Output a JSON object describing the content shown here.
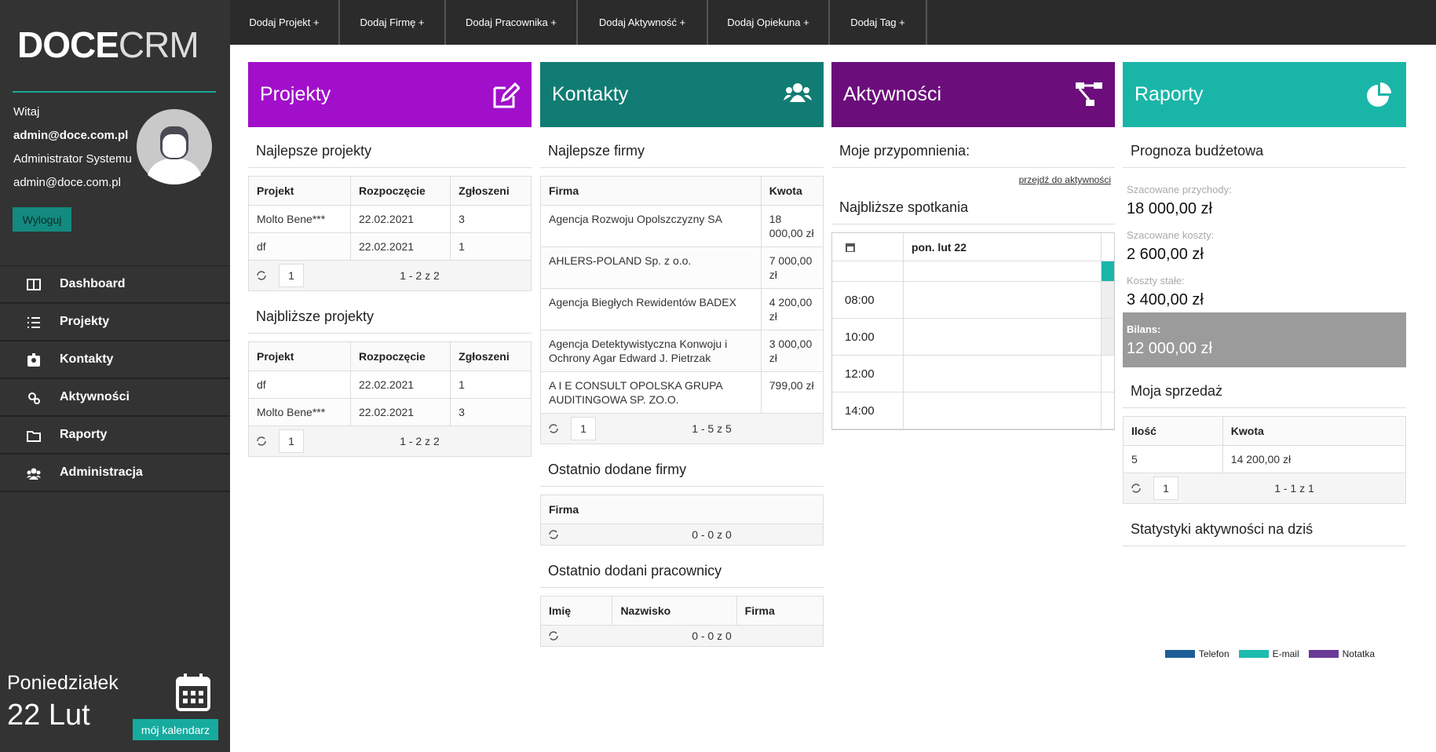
{
  "logo": {
    "brand": "DOCE",
    "product": "CRM"
  },
  "sidebar": {
    "greeting": "Witaj",
    "user": "admin@doce.com.pl",
    "role": "Administrator Systemu",
    "email": "admin@doce.com.pl",
    "logout": "Wyloguj",
    "menu": [
      "Dashboard",
      "Projekty",
      "Kontakty",
      "Aktywności",
      "Raporty",
      "Administracja"
    ],
    "day": "Poniedziałek",
    "date": "22 Lut",
    "calendar_button": "mój kalendarz"
  },
  "topbar": [
    "Dodaj Projekt +",
    "Dodaj Firmę +",
    "Dodaj Pracownika +",
    "Dodaj Aktywność +",
    "Dodaj Opiekuna +",
    "Dodaj Tag +"
  ],
  "columns": [
    {
      "tile": "Projekty",
      "sections": [
        {
          "title": "Najlepsze projekty",
          "table": {
            "columns": [
              "Projekt",
              "Rozpoczęcie",
              "Zgłoszeni"
            ],
            "rows": [
              [
                "Molto Bene***",
                "22.02.2021",
                "3"
              ],
              [
                "df",
                "22.02.2021",
                "1"
              ]
            ],
            "page": "1",
            "range": "1 - 2 z 2"
          }
        },
        {
          "title": "Najbliższe projekty",
          "table": {
            "columns": [
              "Projekt",
              "Rozpoczęcie",
              "Zgłoszeni"
            ],
            "rows": [
              [
                "df",
                "22.02.2021",
                "1"
              ],
              [
                "Molto Bene***",
                "22.02.2021",
                "3"
              ]
            ],
            "page": "1",
            "range": "1 - 2 z 2"
          }
        }
      ]
    },
    {
      "tile": "Kontakty",
      "sections": [
        {
          "title": "Najlepsze firmy",
          "table": {
            "columns": [
              "Firma",
              "Kwota"
            ],
            "rows": [
              [
                "Agencja Rozwoju Opolszczyzny SA",
                "18 000,00 zł"
              ],
              [
                "AHLERS-POLAND Sp. z o.o.",
                "7 000,00 zł"
              ],
              [
                "Agencja Biegłych Rewidentów BADEX",
                "4 200,00 zł"
              ],
              [
                "Agencja Detektywistyczna Konwoju i Ochrony Agar Edward J. Pietrzak",
                "3 000,00 zł"
              ],
              [
                "A I E CONSULT OPOLSKA GRUPA AUDITINGOWA SP. ZO.O.",
                "799,00 zł"
              ]
            ],
            "page": "1",
            "range": "1 - 5 z 5"
          }
        },
        {
          "title": "Ostatnio dodane firmy",
          "table": {
            "columns": [
              "Firma"
            ],
            "rows": [],
            "range": "0 - 0 z 0"
          }
        },
        {
          "title": "Ostatnio dodani pracownicy",
          "table": {
            "columns": [
              "Imię",
              "Nazwisko",
              "Firma"
            ],
            "rows": [],
            "range": "0 - 0 z 0"
          }
        }
      ]
    },
    {
      "tile": "Aktywności",
      "sections": [
        {
          "title": "Moje przypomnienia:",
          "link": "przejdź do aktywności"
        },
        {
          "title": "Najbliższe spotkania",
          "calendar": {
            "day": "pon. lut 22",
            "times": [
              "08:00",
              "10:00",
              "12:00",
              "14:00"
            ]
          }
        }
      ]
    },
    {
      "tile": "Raporty",
      "sections": [
        {
          "title": "Prognoza budżetowa",
          "budget": [
            {
              "label": "Szacowane przychody:",
              "value": "18 000,00 zł"
            },
            {
              "label": "Szacowane koszty:",
              "value": "2 600,00 zł"
            },
            {
              "label": "Koszty stałe:",
              "value": "3 400,00 zł"
            }
          ],
          "balance": {
            "label": "Bilans:",
            "value": "12 000,00 zł"
          }
        },
        {
          "title": "Moja sprzedaż",
          "table": {
            "columns": [
              "Ilość",
              "Kwota"
            ],
            "rows": [
              [
                "5",
                "14 200,00 zł"
              ]
            ],
            "page": "1",
            "range": "1 - 1 z 1"
          }
        },
        {
          "title": "Statystyki aktywności na dziś",
          "legend": [
            {
              "name": "Telefon",
              "color": "#1d5d98"
            },
            {
              "name": "E-mail",
              "color": "#1cbcae"
            },
            {
              "name": "Notatka",
              "color": "#6a3a96"
            }
          ]
        }
      ]
    }
  ]
}
